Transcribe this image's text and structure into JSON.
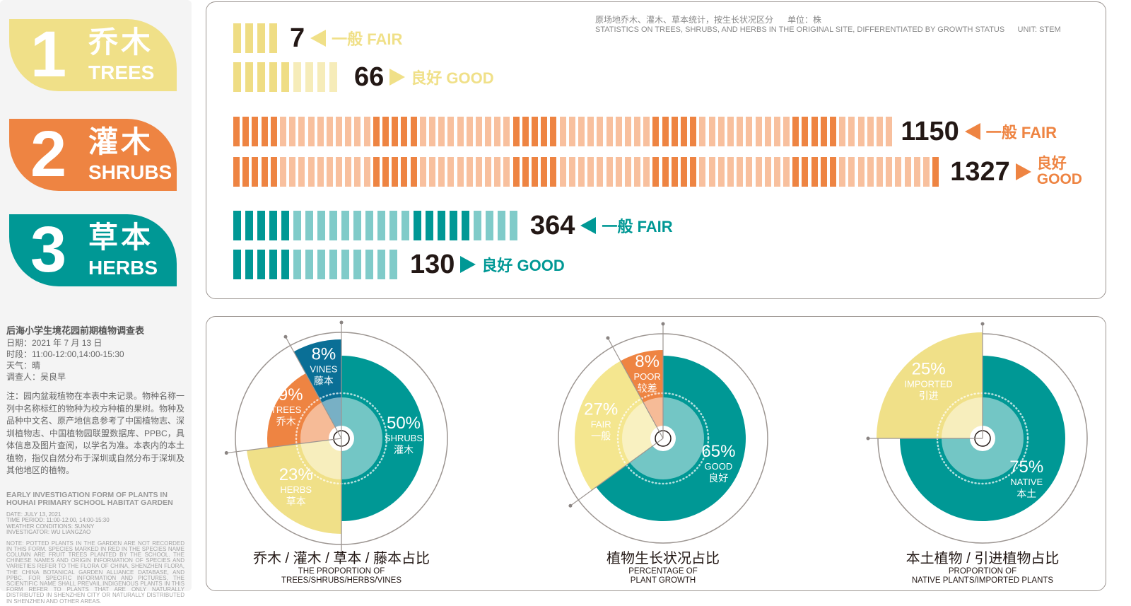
{
  "categories": [
    {
      "num": "1",
      "zh": "乔木",
      "en": "TREES",
      "color": "#f0e088",
      "light": "#f6ecb9",
      "dark": "#efdd84",
      "fair": {
        "value": "7",
        "label": "一般 FAIR",
        "bars": 4
      },
      "good": {
        "value": "66",
        "label": "良好 GOOD",
        "bars": 9
      }
    },
    {
      "num": "2",
      "zh": "灌木",
      "en": "SHRUBS",
      "color": "#ee8442",
      "light": "#f8c09e",
      "dark": "#ee8442",
      "fair": {
        "value": "1150",
        "label": "一般 FAIR",
        "bars": 71
      },
      "good": {
        "value": "1327",
        "label_zh": "良好",
        "label_en": "GOOD",
        "bars": 76
      }
    },
    {
      "num": "3",
      "zh": "草本",
      "en": "HERBS",
      "color": "#009895",
      "light": "#80cbc9",
      "dark": "#009895",
      "fair": {
        "value": "364",
        "label": "一般 FAIR",
        "bars": 24
      },
      "good": {
        "value": "130",
        "label": "良好 GOOD",
        "bars": 14
      }
    }
  ],
  "header": {
    "zh": "原场地乔木、灌木、草本统计，按生长状况区分      单位：株",
    "en": "STATISTICS ON TREES, SHRUBS, AND HERBS IN THE ORIGINAL SITE, DIFFERENTIATED BY GROWTH STATUS      UNIT: STEM"
  },
  "info": {
    "title": "后海小学生境花园前期植物调查表",
    "lines": [
      "日期：2021 年 7 月 13 日",
      "时段：11:00-12:00,14:00-15:30",
      "天气：晴",
      "调查人：吴良早"
    ],
    "note": "注：园内盆栽植物在本表中未记录。物种名称一列中名称标红的物种为校方种植的果树。物种及品种中文名、原产地信息参考了中国植物志、深圳植物志、中国植物园联盟数据库、PPBC，具体信息及图片查阅，以学名为准。本表内的本土植物，指仅自然分布于深圳或自然分布于深圳及其他地区的植物。",
    "en_title": "EARLY INVESTIGATION FORM OF PLANTS IN HOUHAI PRIMARY SCHOOL HABITAT GARDEN",
    "en_lines": [
      "DATE: JULY 13, 2021",
      "TIME PERIOD: 11:00-12:00, 14:00-15:30",
      "WEATHER CONDITIONS: SUNNY",
      "INVESTIGATOR: WU LIANGZAO"
    ],
    "en_note": "NOTE: POTTED PLANTS IN THE GARDEN ARE NOT RECORDED IN THIS FORM. SPECIES MARKED IN RED IN THE SPECIES NAME COLUMN ARE FRUIT TREES PLANTED BY THE SCHOOL. THE CHINESE NAMES AND ORIGIN INFORMATION OF SPECIES AND VARIETIES REFER TO THE FLORA OF CHINA, SHENZHEN FLORA, THE CHINA BOTANICAL GARDEN ALLIANCE DATABASE, AND PPBC. FOR SPECIFIC INFORMATION AND PICTURES, THE SCIENTIFIC NAME SHALL PREVAIL.INDIGENOUS PLANTS IN THIS FORM REFER TO PLANTS THAT ARE ONLY NATURALLY DISTRIBUTED IN SHENZHEN CITY OR NATURALLY DISTRIBUTED IN SHENZHEN AND OTHER AREAS."
  },
  "chart_data": [
    {
      "type": "pie",
      "title_zh": "乔木 / 灌木 / 草本 / 藤本占比",
      "title_en": [
        "THE PROPORTION OF",
        "TREES/SHRUBS/HERBS/VINES"
      ],
      "slices": [
        {
          "pct": "50%",
          "value": 50,
          "en": "SHRUBS",
          "zh": "灌木",
          "color": "#009895"
        },
        {
          "pct": "23%",
          "value": 23,
          "en": "HERBS",
          "zh": "草本",
          "color": "#f0e088"
        },
        {
          "pct": "19%",
          "value": 19,
          "en": "TREES",
          "zh": "乔木",
          "color": "#ee8442"
        },
        {
          "pct": "8%",
          "value": 8,
          "en": "VINES",
          "zh": "藤本",
          "color": "#0a6f96"
        }
      ]
    },
    {
      "type": "pie",
      "title_zh": "植物生长状况占比",
      "title_en": [
        "PERCENTAGE OF",
        "PLANT GROWTH"
      ],
      "slices": [
        {
          "pct": "65%",
          "value": 65,
          "en": "GOOD",
          "zh": "良好",
          "color": "#009895"
        },
        {
          "pct": "27%",
          "value": 27,
          "en": "FAIR",
          "zh": "一般",
          "color": "#f4e68f"
        },
        {
          "pct": "8%",
          "value": 8,
          "en": "POOR",
          "zh": "较差",
          "color": "#ee8442"
        }
      ]
    },
    {
      "type": "pie",
      "title_zh": "本土植物 / 引进植物占比",
      "title_en": [
        "PROPORTION OF",
        "NATIVE PLANTS/IMPORTED PLANTS"
      ],
      "slices": [
        {
          "pct": "75%",
          "value": 75,
          "en": "NATIVE",
          "zh": "本土",
          "color": "#009895"
        },
        {
          "pct": "25%",
          "value": 25,
          "en": "IMPORTED",
          "zh": "引进",
          "color": "#f0e088"
        }
      ]
    }
  ]
}
